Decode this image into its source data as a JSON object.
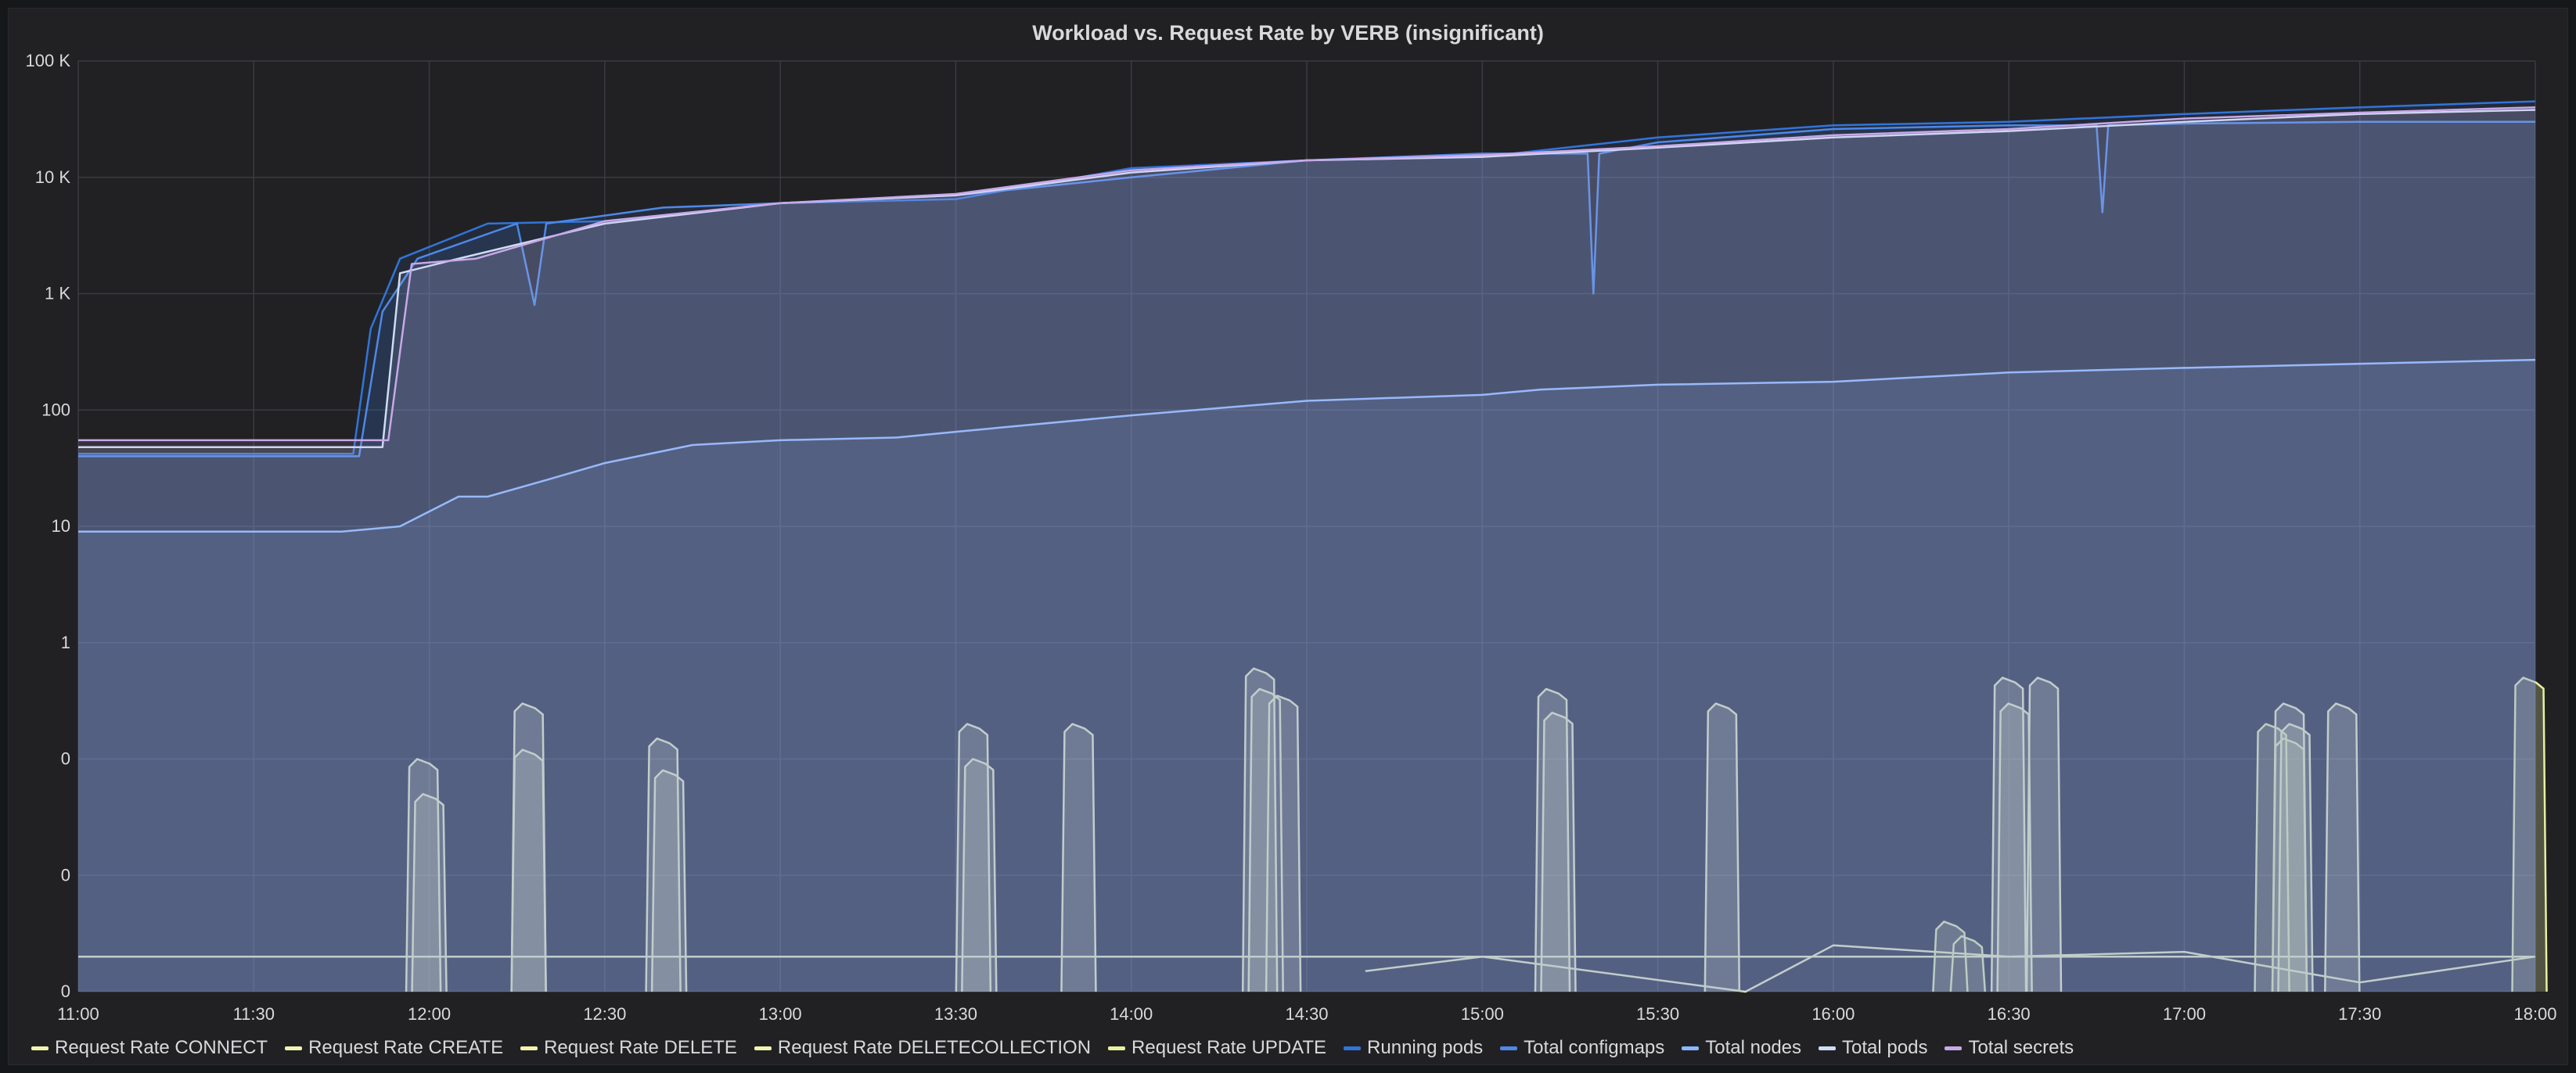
{
  "panel": {
    "title": "Workload vs. Request Rate by VERB (insignificant)"
  },
  "chart_data": {
    "type": "line",
    "title": "Workload vs. Request Rate by VERB (insignificant)",
    "x_axis": {
      "ticks": [
        "11:00",
        "11:30",
        "12:00",
        "12:30",
        "13:00",
        "13:30",
        "14:00",
        "14:30",
        "15:00",
        "15:30",
        "16:00",
        "16:30",
        "17:00",
        "17:30",
        "18:00"
      ],
      "range": [
        "11:00",
        "18:00"
      ]
    },
    "y_axis": {
      "scale": "log",
      "tick_labels": [
        "0",
        "0",
        "0",
        "1",
        "10",
        "100",
        "1 K",
        "10 K",
        "100 K"
      ]
    },
    "grid": true,
    "legend_position": "bottom",
    "series": [
      {
        "name": "Request Rate CONNECT",
        "color": "#f2f2b0",
        "style": "flat",
        "x": [
          "11:00",
          "11:15",
          "11:30",
          "12:00",
          "13:00",
          "14:00",
          "15:00",
          "15:30",
          "16:00",
          "16:30",
          "17:00",
          "17:30",
          "18:00"
        ],
        "y": [
          0.002,
          0.002,
          0.002,
          0.002,
          0.002,
          0.002,
          0.002,
          0.002,
          0.002,
          0.002,
          0.002,
          0.002,
          0.002
        ]
      },
      {
        "name": "Request Rate CREATE",
        "color": "#f2f2b0",
        "style": "bursts",
        "x": [
          "11:59",
          "12:17",
          "12:40",
          "13:33",
          "13:51",
          "14:22",
          "15:12",
          "15:41",
          "16:30",
          "16:36",
          "17:18",
          "17:27"
        ],
        "y": [
          0.1,
          0.3,
          0.15,
          0.2,
          0.2,
          0.6,
          0.4,
          0.3,
          0.5,
          0.5,
          0.3,
          0.3
        ]
      },
      {
        "name": "Request Rate DELETE",
        "color": "#f2f2b0",
        "style": "bursts",
        "x": [
          "12:00",
          "12:17",
          "12:41",
          "13:34",
          "14:23",
          "14:26",
          "15:13",
          "16:31",
          "17:19"
        ],
        "y": [
          0.05,
          0.12,
          0.08,
          0.1,
          0.4,
          0.35,
          0.25,
          0.3,
          0.2
        ]
      },
      {
        "name": "Request Rate DELETECOLLECTION",
        "color": "#f2f2b0",
        "style": "noise",
        "x": [
          "14:40",
          "15:00",
          "15:45",
          "16:00",
          "16:30",
          "17:00",
          "17:30",
          "18:00"
        ],
        "y": [
          0.0015,
          0.002,
          0.001,
          0.0025,
          0.002,
          0.0022,
          0.0012,
          0.002
        ]
      },
      {
        "name": "Request Rate UPDATE",
        "color": "#e8f0a0",
        "style": "bursts",
        "x": [
          "16:20",
          "16:23",
          "17:15",
          "17:18",
          "17:59"
        ],
        "y": [
          0.004,
          0.003,
          0.2,
          0.15,
          0.5
        ]
      },
      {
        "name": "Running pods",
        "color": "#3274d9",
        "x": [
          "11:00",
          "11:47",
          "11:50",
          "11:55",
          "12:10",
          "12:30",
          "13:00",
          "13:30",
          "14:00",
          "14:30",
          "15:00",
          "15:30",
          "16:00",
          "16:30",
          "17:00",
          "17:30",
          "18:00"
        ],
        "y": [
          42,
          42,
          500,
          2000,
          4000,
          4200,
          6000,
          6500,
          12000,
          14000,
          15000,
          22000,
          28000,
          30000,
          35000,
          40000,
          45000
        ]
      },
      {
        "name": "Total configmaps",
        "color": "#4e88e8",
        "x": [
          "11:00",
          "11:48",
          "11:52",
          "11:58",
          "12:15",
          "12:18",
          "12:20",
          "12:40",
          "13:00",
          "13:30",
          "14:00",
          "14:30",
          "15:00",
          "15:18",
          "15:19",
          "15:20",
          "15:30",
          "16:00",
          "16:30",
          "16:45",
          "16:46",
          "16:47",
          "17:00",
          "17:30",
          "18:00"
        ],
        "y": [
          40,
          40,
          700,
          2000,
          4000,
          800,
          4000,
          5500,
          6000,
          7000,
          10000,
          14000,
          16000,
          16000,
          1000,
          16000,
          20000,
          26000,
          28000,
          28000,
          5000,
          28000,
          29000,
          30000,
          30000
        ]
      },
      {
        "name": "Total nodes",
        "color": "#8ab8ff",
        "x": [
          "11:00",
          "11:45",
          "11:55",
          "12:05",
          "12:10",
          "12:20",
          "12:30",
          "12:45",
          "13:00",
          "13:20",
          "13:30",
          "14:00",
          "14:30",
          "15:00",
          "15:10",
          "15:30",
          "16:00",
          "16:30",
          "17:00",
          "17:30",
          "18:00"
        ],
        "y": [
          9,
          9,
          10,
          18,
          18,
          25,
          35,
          50,
          55,
          58,
          65,
          90,
          120,
          135,
          150,
          165,
          175,
          210,
          230,
          250,
          270
        ]
      },
      {
        "name": "Total pods",
        "color": "#d0dcf5",
        "x": [
          "11:00",
          "11:52",
          "11:55",
          "12:05",
          "12:30",
          "13:00",
          "13:30",
          "14:00",
          "14:30",
          "15:00",
          "15:30",
          "16:00",
          "16:30",
          "17:00",
          "17:30",
          "18:00"
        ],
        "y": [
          48,
          48,
          1500,
          2000,
          4000,
          6000,
          7000,
          11000,
          14000,
          15000,
          18000,
          22000,
          25000,
          30000,
          35000,
          38000
        ]
      },
      {
        "name": "Total secrets",
        "color": "#c8a8e8",
        "x": [
          "11:00",
          "11:53",
          "11:57",
          "12:08",
          "12:30",
          "13:00",
          "13:30",
          "14:00",
          "14:30",
          "15:00",
          "15:30",
          "16:00",
          "16:30",
          "17:00",
          "17:30",
          "18:00"
        ],
        "y": [
          55,
          55,
          1800,
          2000,
          4200,
          6000,
          7200,
          11500,
          14000,
          15500,
          18500,
          23000,
          26000,
          32000,
          36000,
          40000
        ]
      }
    ]
  },
  "legend_items": [
    {
      "label": "Request Rate CONNECT",
      "color": "#f2f2b0"
    },
    {
      "label": "Request Rate CREATE",
      "color": "#f2f2b0"
    },
    {
      "label": "Request Rate DELETE",
      "color": "#f2f2b0"
    },
    {
      "label": "Request Rate DELETECOLLECTION",
      "color": "#f2f2b0"
    },
    {
      "label": "Request Rate UPDATE",
      "color": "#e8f0a0"
    },
    {
      "label": "Running pods",
      "color": "#3274d9"
    },
    {
      "label": "Total configmaps",
      "color": "#4e88e8"
    },
    {
      "label": "Total nodes",
      "color": "#8ab8ff"
    },
    {
      "label": "Total pods",
      "color": "#d0dcf5"
    },
    {
      "label": "Total secrets",
      "color": "#c8a8e8"
    }
  ]
}
